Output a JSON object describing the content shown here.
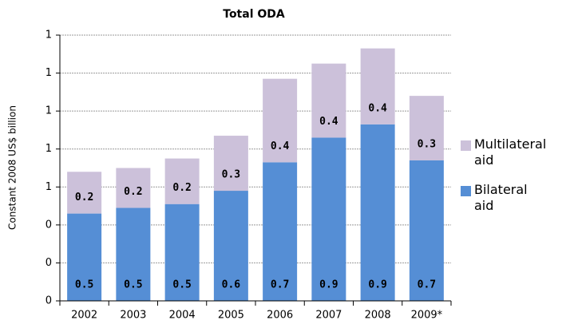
{
  "chart_data": {
    "type": "stacked_bar",
    "title": "Total ODA",
    "y_label": "Constant 2008 US$ billion",
    "categories": [
      "2002",
      "2003",
      "2004",
      "2005",
      "2006",
      "2007",
      "2008",
      "2009*"
    ],
    "series": [
      {
        "name": "Bilateral aid",
        "color": "#558ed5",
        "values": [
          0.46,
          0.49,
          0.51,
          0.58,
          0.73,
          0.86,
          0.93,
          0.74
        ],
        "value_labels": [
          "0.5",
          "0.5",
          "0.5",
          "0.6",
          "0.7",
          "0.9",
          "0.9",
          "0.7"
        ]
      },
      {
        "name": "Multilateral aid",
        "color": "#ccc1da",
        "values": [
          0.22,
          0.21,
          0.24,
          0.29,
          0.44,
          0.39,
          0.4,
          0.34
        ],
        "value_labels": [
          "0.2",
          "0.2",
          "0.2",
          "0.3",
          "0.4",
          "0.4",
          "0.4",
          "0.3"
        ]
      }
    ],
    "ylim": [
      0,
      1.4
    ],
    "yticks": [
      {
        "value": 0,
        "label": "0"
      },
      {
        "value": 0.2,
        "label": "0"
      },
      {
        "value": 0.4,
        "label": "0"
      },
      {
        "value": 0.6,
        "label": "1"
      },
      {
        "value": 0.8,
        "label": "1"
      },
      {
        "value": 1.0,
        "label": "1"
      },
      {
        "value": 1.2,
        "label": "1"
      },
      {
        "value": 1.4,
        "label": "1"
      }
    ],
    "grid": true
  }
}
